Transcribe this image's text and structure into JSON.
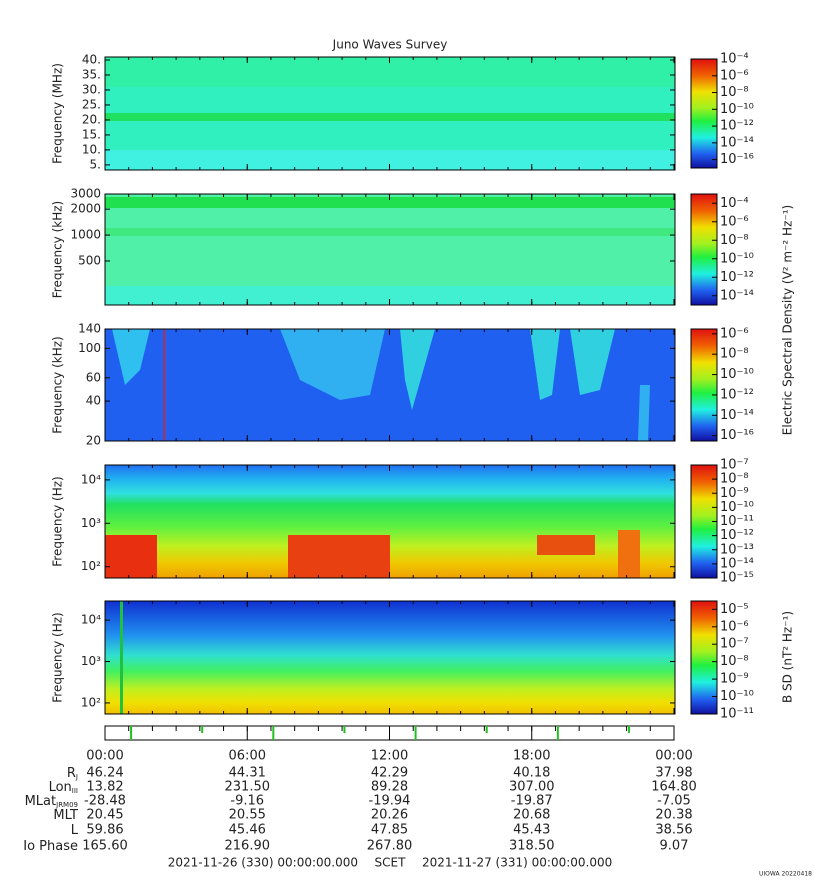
{
  "title": "Juno Waves Survey",
  "chart_data": [
    {
      "type": "spectrogram",
      "y_label": "Frequency (MHz)",
      "log": false,
      "ylim": [
        3.3,
        41
      ],
      "yticks": [
        {
          "value": 40,
          "label": "40."
        },
        {
          "value": 35,
          "label": "35."
        },
        {
          "value": 30,
          "label": "30."
        },
        {
          "value": 25,
          "label": "25."
        },
        {
          "value": 20,
          "label": "20."
        },
        {
          "value": 15,
          "label": "15."
        },
        {
          "value": 10,
          "label": "10."
        },
        {
          "value": 5,
          "label": "5."
        }
      ],
      "zlim": [
        1e-17,
        0.0001
      ],
      "zticks": [
        {
          "value": 0.0001,
          "label": "10⁻⁴"
        },
        {
          "value": 1e-06,
          "label": "10⁻⁶"
        },
        {
          "value": 1e-08,
          "label": "10⁻⁸"
        },
        {
          "value": 1e-10,
          "label": "10⁻¹⁰"
        },
        {
          "value": 1e-12,
          "label": "10⁻¹²"
        },
        {
          "value": 1e-14,
          "label": "10⁻¹⁴"
        },
        {
          "value": 1e-16,
          "label": "10⁻¹⁶"
        }
      ]
    },
    {
      "type": "spectrogram",
      "y_label": "Frequency (kHz)",
      "log": true,
      "ylim": [
        154,
        3000
      ],
      "yticks": [
        3000,
        2000,
        1000,
        500
      ],
      "zlim": [
        1e-15,
        0.001
      ],
      "zticks": [
        {
          "value": 0.0001,
          "label": "10⁻⁴"
        },
        {
          "value": 1e-06,
          "label": "10⁻⁶"
        },
        {
          "value": 1e-08,
          "label": "10⁻⁸"
        },
        {
          "value": 1e-10,
          "label": "10⁻¹⁰"
        },
        {
          "value": 1e-12,
          "label": "10⁻¹²"
        },
        {
          "value": 1e-14,
          "label": "10⁻¹⁴"
        }
      ],
      "colorbar_label": "Electric Spectral Density (V² m⁻² Hz⁻¹)"
    },
    {
      "type": "spectrogram",
      "y_label": "Frequency (kHz)",
      "log": true,
      "ylim": [
        20,
        140
      ],
      "yticks": [
        140,
        100,
        60,
        40,
        20
      ],
      "zlim": [
        3e-17,
        3e-06
      ],
      "zticks": [
        {
          "value": 1e-06,
          "label": "10⁻⁶"
        },
        {
          "value": 1e-08,
          "label": "10⁻⁸"
        },
        {
          "value": 1e-10,
          "label": "10⁻¹⁰"
        },
        {
          "value": 1e-12,
          "label": "10⁻¹²"
        },
        {
          "value": 1e-14,
          "label": "10⁻¹⁴"
        },
        {
          "value": 1e-16,
          "label": "10⁻¹⁶"
        }
      ]
    },
    {
      "type": "spectrogram",
      "y_label": "Frequency (Hz)",
      "log": true,
      "ylim": [
        55,
        22000
      ],
      "yticks": [
        {
          "value": 10000,
          "label": "10⁴"
        },
        {
          "value": 1000,
          "label": "10³"
        },
        {
          "value": 100,
          "label": "10²"
        }
      ],
      "zlim": [
        1e-15,
        1e-07
      ],
      "zticks": [
        {
          "value": 1e-07,
          "label": "10⁻⁷"
        },
        {
          "value": 1e-08,
          "label": "10⁻⁸"
        },
        {
          "value": 1e-09,
          "label": "10⁻⁹"
        },
        {
          "value": 1e-10,
          "label": "10⁻¹⁰"
        },
        {
          "value": 1e-11,
          "label": "10⁻¹¹"
        },
        {
          "value": 1e-12,
          "label": "10⁻¹²"
        },
        {
          "value": 1e-13,
          "label": "10⁻¹³"
        },
        {
          "value": 1e-14,
          "label": "10⁻¹⁴"
        },
        {
          "value": 1e-15,
          "label": "10⁻¹⁵"
        }
      ]
    },
    {
      "type": "spectrogram",
      "y_label": "Frequency (Hz)",
      "log": true,
      "ylim": [
        54,
        29000
      ],
      "yticks": [
        {
          "value": 10000,
          "label": "10⁴"
        },
        {
          "value": 1000,
          "label": "10³"
        },
        {
          "value": 100,
          "label": "10²"
        }
      ],
      "zlim": [
        1e-11,
        3e-05
      ],
      "zticks": [
        {
          "value": 1e-05,
          "label": "10⁻⁵"
        },
        {
          "value": 1e-06,
          "label": "10⁻⁶"
        },
        {
          "value": 1e-07,
          "label": "10⁻⁷"
        },
        {
          "value": 1e-08,
          "label": "10⁻⁸"
        },
        {
          "value": 1e-09,
          "label": "10⁻⁹"
        },
        {
          "value": 1e-10,
          "label": "10⁻¹⁰"
        },
        {
          "value": 1e-11,
          "label": "10⁻¹¹"
        }
      ],
      "colorbar_label": "B SD (nT² Hz⁻¹)"
    }
  ],
  "time_axis": {
    "xlim": [
      0,
      24
    ],
    "xticks": [
      {
        "value": 0,
        "label": "00:00"
      },
      {
        "value": 6,
        "label": "06:00"
      },
      {
        "value": 12,
        "label": "12:00"
      },
      {
        "value": 18,
        "label": "18:00"
      },
      {
        "value": 24,
        "label": "00:00"
      }
    ]
  },
  "ephemeris": {
    "rows": [
      {
        "label": "R",
        "sub": "J",
        "values": [
          "46.24",
          "44.31",
          "42.29",
          "40.18",
          "37.98"
        ]
      },
      {
        "label": "Lon",
        "sub": "III",
        "values": [
          "13.82",
          "231.50",
          "89.28",
          "307.00",
          "164.80"
        ]
      },
      {
        "label": "MLat",
        "sub": "JRM09",
        "values": [
          "-28.48",
          "-9.16",
          "-19.94",
          "-19.87",
          "-7.05"
        ]
      },
      {
        "label": "MLT",
        "values": [
          "20.45",
          "20.55",
          "20.26",
          "20.68",
          "20.38"
        ]
      },
      {
        "label": "L",
        "values": [
          "59.86",
          "45.46",
          "47.85",
          "45.43",
          "38.56"
        ]
      },
      {
        "label": "Io Phase",
        "values": [
          "165.60",
          "216.90",
          "267.80",
          "318.50",
          "9.07"
        ]
      }
    ]
  },
  "footer": {
    "start": "2021-11-26 (330) 00:00:00.000",
    "scet": "SCET",
    "end": "2021-11-27 (331) 00:00:00.000",
    "stamp": "UIOWA 20220418"
  }
}
